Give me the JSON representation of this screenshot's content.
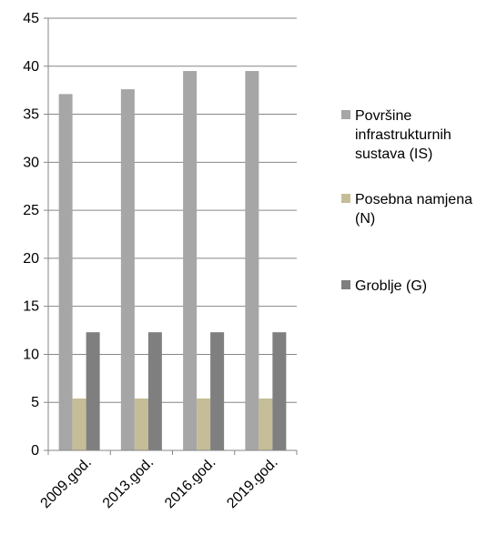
{
  "chart_data": {
    "type": "bar",
    "title": "",
    "xlabel": "",
    "ylabel": "",
    "categories": [
      "2009.god.",
      "2013.god.",
      "2016.god.",
      "2019.god."
    ],
    "series": [
      {
        "name": "Površine infrastrukturnih sustava (IS)",
        "values": [
          37.1,
          37.6,
          39.5,
          39.5
        ],
        "color": "#a6a6a6"
      },
      {
        "name": "Posebna namjena (N)",
        "values": [
          5.4,
          5.4,
          5.4,
          5.4
        ],
        "color": "#c4bd97"
      },
      {
        "name": "Groblje (G)",
        "values": [
          12.3,
          12.3,
          12.3,
          12.3
        ],
        "color": "#7f7f7f"
      }
    ],
    "ylim": [
      0,
      45
    ],
    "yticks": [
      "0",
      "5",
      "10",
      "15",
      "20",
      "25",
      "30",
      "35",
      "40",
      "45"
    ],
    "grid": true,
    "legend": "right"
  }
}
